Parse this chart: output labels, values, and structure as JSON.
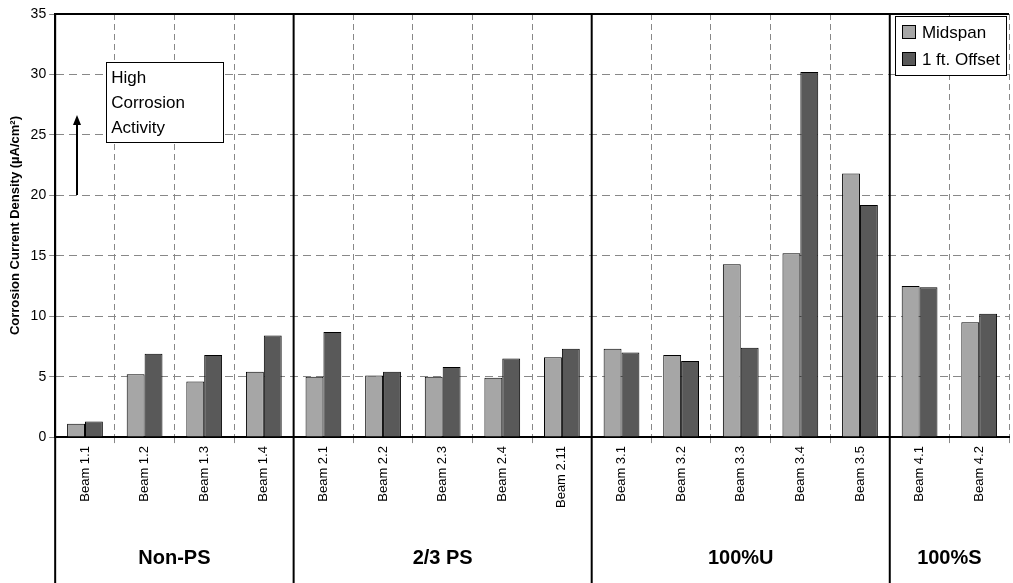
{
  "chart_data": {
    "type": "bar",
    "ylabel": "Corrosion Current Density (µA/cm²)",
    "categories": [
      "Beam 1.1",
      "Beam 1.2",
      "Beam 1.3",
      "Beam 1.4",
      "Beam 2.1",
      "Beam 2.2",
      "Beam 2.3",
      "Beam 2.4",
      "Beam 2.11",
      "Beam 3.1",
      "Beam 3.2",
      "Beam 3.3",
      "Beam 3.4",
      "Beam 3.5",
      "Beam 4.1",
      "Beam 4.2"
    ],
    "series": [
      {
        "name": "Midspan",
        "color": "#a6a6a6",
        "values": [
          1.1,
          5.2,
          4.6,
          5.4,
          5.0,
          5.1,
          5.0,
          4.9,
          6.6,
          7.3,
          6.8,
          14.3,
          15.2,
          21.8,
          12.5,
          9.5
        ]
      },
      {
        "name": "1 ft. Offset",
        "color": "#595959",
        "values": [
          1.3,
          6.9,
          6.8,
          8.4,
          8.7,
          5.4,
          5.8,
          6.5,
          7.3,
          7.0,
          6.3,
          7.4,
          30.2,
          19.2,
          12.4,
          10.2
        ]
      }
    ],
    "ylim": [
      0,
      35
    ],
    "yticks": [
      0,
      5,
      10,
      15,
      20,
      25,
      30,
      35
    ],
    "grid": true,
    "legend": "top right",
    "annotations": [
      "High Corrosion Activity",
      "Non-PS",
      "2/3 PS",
      "100%U",
      "100%S"
    ]
  }
}
